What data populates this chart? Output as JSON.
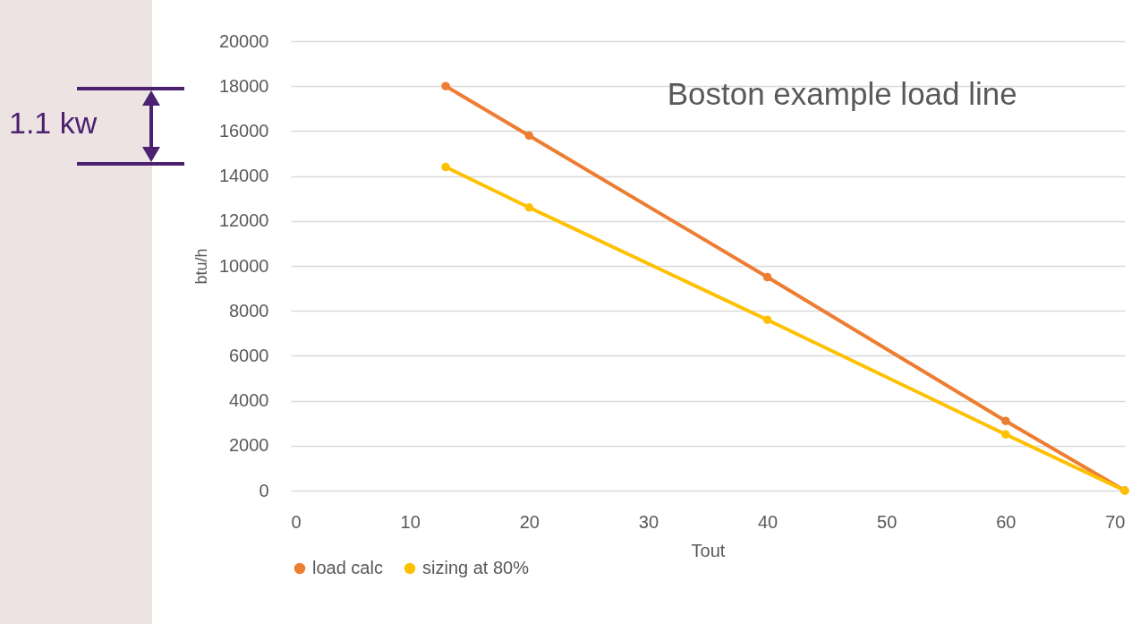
{
  "chart_data": {
    "type": "line",
    "title": "Boston example load line",
    "xlabel": "Tout",
    "ylabel": "btu/h",
    "annotations": [
      "1.1 kw"
    ],
    "series": [
      {
        "name": "load calc",
        "color": "#ed7d31",
        "x": [
          13,
          20,
          40,
          60,
          70
        ],
        "values": [
          18000,
          15800,
          9500,
          3100,
          0
        ]
      },
      {
        "name": "sizing at 80%",
        "color": "#ffc000",
        "x": [
          13,
          20,
          40,
          60,
          70
        ],
        "values": [
          14400,
          12600,
          7600,
          2500,
          0
        ]
      }
    ],
    "xlim": [
      0,
      70
    ],
    "xticks": [
      0,
      10,
      20,
      30,
      40,
      50,
      60,
      70
    ],
    "ylim": [
      0,
      20000
    ],
    "yticks": [
      0,
      2000,
      4000,
      6000,
      8000,
      10000,
      12000,
      14000,
      16000,
      18000,
      20000
    ],
    "grid": "y",
    "legend": "bottom",
    "marker": "circle",
    "line_style": "solid"
  }
}
